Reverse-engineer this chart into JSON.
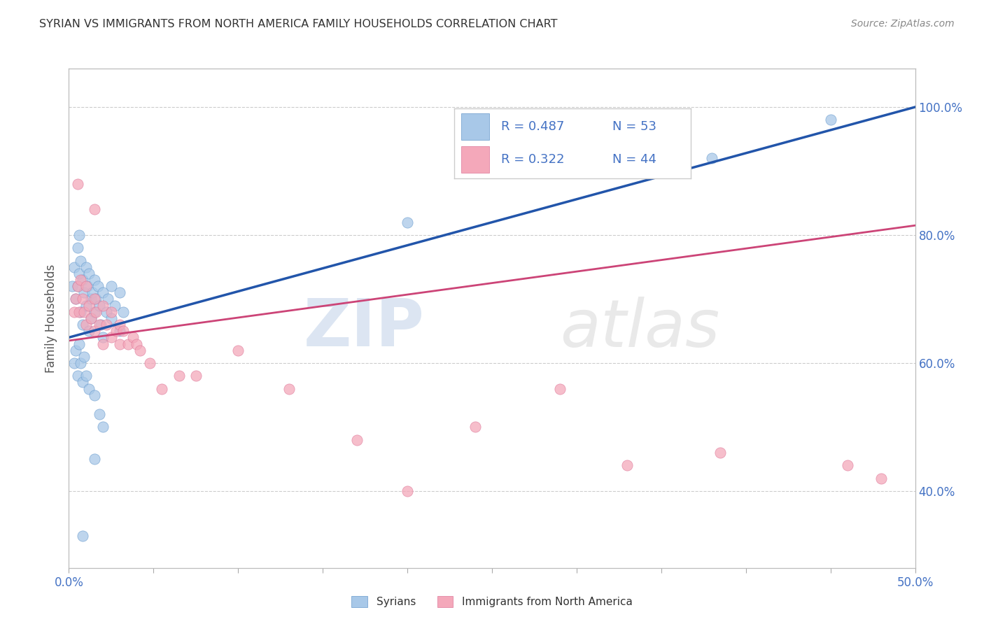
{
  "title": "SYRIAN VS IMMIGRANTS FROM NORTH AMERICA FAMILY HOUSEHOLDS CORRELATION CHART",
  "source": "Source: ZipAtlas.com",
  "ylabel": "Family Households",
  "watermark": "ZIPatlas",
  "x_min": 0.0,
  "x_max": 0.5,
  "y_min": 0.28,
  "y_max": 1.06,
  "yticks": [
    0.4,
    0.6,
    0.8,
    1.0
  ],
  "ytick_labels": [
    "40.0%",
    "60.0%",
    "80.0%",
    "100.0%"
  ],
  "xtick_positions": [
    0.0,
    0.05,
    0.1,
    0.15,
    0.2,
    0.25,
    0.3,
    0.35,
    0.4,
    0.45,
    0.5
  ],
  "xtick_labeled": [
    0.0,
    0.5
  ],
  "xtick_labeled_labels": [
    "0.0%",
    "50.0%"
  ],
  "legend_r1": "R = 0.487",
  "legend_n1": "N = 53",
  "legend_r2": "R = 0.322",
  "legend_n2": "N = 44",
  "blue_color": "#a8c8e8",
  "blue_edge_color": "#6699cc",
  "blue_line_color": "#2255aa",
  "pink_color": "#f4a8ba",
  "pink_edge_color": "#dd7799",
  "pink_line_color": "#cc4477",
  "axis_color": "#4472c4",
  "title_color": "#333333",
  "source_color": "#888888",
  "grid_color": "#cccccc",
  "blue_scatter": [
    [
      0.002,
      0.72
    ],
    [
      0.003,
      0.75
    ],
    [
      0.004,
      0.7
    ],
    [
      0.005,
      0.78
    ],
    [
      0.005,
      0.72
    ],
    [
      0.006,
      0.8
    ],
    [
      0.006,
      0.74
    ],
    [
      0.007,
      0.76
    ],
    [
      0.007,
      0.68
    ],
    [
      0.008,
      0.73
    ],
    [
      0.008,
      0.66
    ],
    [
      0.009,
      0.71
    ],
    [
      0.01,
      0.75
    ],
    [
      0.01,
      0.69
    ],
    [
      0.011,
      0.72
    ],
    [
      0.012,
      0.74
    ],
    [
      0.012,
      0.65
    ],
    [
      0.013,
      0.7
    ],
    [
      0.013,
      0.67
    ],
    [
      0.014,
      0.71
    ],
    [
      0.015,
      0.73
    ],
    [
      0.015,
      0.68
    ],
    [
      0.016,
      0.7
    ],
    [
      0.017,
      0.72
    ],
    [
      0.018,
      0.69
    ],
    [
      0.019,
      0.66
    ],
    [
      0.02,
      0.71
    ],
    [
      0.02,
      0.64
    ],
    [
      0.022,
      0.68
    ],
    [
      0.023,
      0.7
    ],
    [
      0.025,
      0.72
    ],
    [
      0.025,
      0.67
    ],
    [
      0.027,
      0.69
    ],
    [
      0.03,
      0.71
    ],
    [
      0.03,
      0.65
    ],
    [
      0.032,
      0.68
    ],
    [
      0.003,
      0.6
    ],
    [
      0.004,
      0.62
    ],
    [
      0.005,
      0.58
    ],
    [
      0.006,
      0.63
    ],
    [
      0.007,
      0.6
    ],
    [
      0.008,
      0.57
    ],
    [
      0.009,
      0.61
    ],
    [
      0.01,
      0.58
    ],
    [
      0.012,
      0.56
    ],
    [
      0.015,
      0.55
    ],
    [
      0.018,
      0.52
    ],
    [
      0.02,
      0.5
    ],
    [
      0.008,
      0.33
    ],
    [
      0.015,
      0.45
    ],
    [
      0.2,
      0.82
    ],
    [
      0.38,
      0.92
    ],
    [
      0.45,
      0.98
    ]
  ],
  "pink_scatter": [
    [
      0.005,
      0.88
    ],
    [
      0.015,
      0.84
    ],
    [
      0.003,
      0.68
    ],
    [
      0.004,
      0.7
    ],
    [
      0.005,
      0.72
    ],
    [
      0.006,
      0.68
    ],
    [
      0.007,
      0.73
    ],
    [
      0.008,
      0.7
    ],
    [
      0.009,
      0.68
    ],
    [
      0.01,
      0.72
    ],
    [
      0.01,
      0.66
    ],
    [
      0.012,
      0.69
    ],
    [
      0.013,
      0.67
    ],
    [
      0.015,
      0.7
    ],
    [
      0.015,
      0.65
    ],
    [
      0.016,
      0.68
    ],
    [
      0.018,
      0.66
    ],
    [
      0.02,
      0.69
    ],
    [
      0.02,
      0.63
    ],
    [
      0.022,
      0.66
    ],
    [
      0.025,
      0.64
    ],
    [
      0.025,
      0.68
    ],
    [
      0.028,
      0.65
    ],
    [
      0.03,
      0.66
    ],
    [
      0.03,
      0.63
    ],
    [
      0.032,
      0.65
    ],
    [
      0.035,
      0.63
    ],
    [
      0.038,
      0.64
    ],
    [
      0.04,
      0.63
    ],
    [
      0.042,
      0.62
    ],
    [
      0.048,
      0.6
    ],
    [
      0.055,
      0.56
    ],
    [
      0.065,
      0.58
    ],
    [
      0.075,
      0.58
    ],
    [
      0.1,
      0.62
    ],
    [
      0.13,
      0.56
    ],
    [
      0.17,
      0.48
    ],
    [
      0.2,
      0.4
    ],
    [
      0.24,
      0.5
    ],
    [
      0.29,
      0.56
    ],
    [
      0.33,
      0.44
    ],
    [
      0.385,
      0.46
    ],
    [
      0.46,
      0.44
    ],
    [
      0.48,
      0.42
    ]
  ],
  "blue_line_x": [
    0.0,
    0.5
  ],
  "blue_line_y": [
    0.64,
    1.0
  ],
  "pink_line_x": [
    0.0,
    0.5
  ],
  "pink_line_y": [
    0.635,
    0.815
  ]
}
